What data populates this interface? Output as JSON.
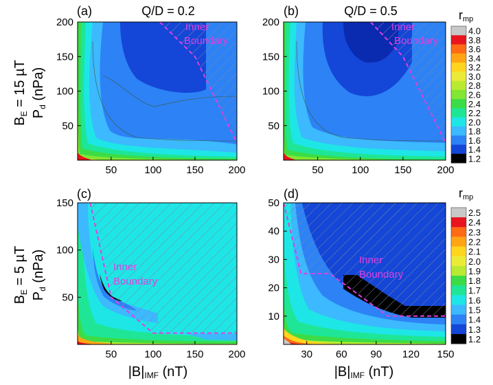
{
  "figure": {
    "row_labels": [
      {
        "field": "B",
        "sub": "E",
        "rest": " = 15 µT"
      },
      {
        "field": "B",
        "sub": "E",
        "rest": " = 5 µT"
      }
    ],
    "ylabel": {
      "main": "P",
      "sub": "d",
      "unit": " (nPa)"
    },
    "xlabel": {
      "main": "|B|",
      "sub": "IMF",
      "unit": " (nT)"
    },
    "inner_boundary_text": [
      "Inner",
      "Boundary"
    ]
  },
  "colors": {
    "boundary": "#e040e0",
    "hatch": "#7a8aa0",
    "contour": "#3a5a3a"
  },
  "chart_data": [
    {
      "type": "contour",
      "panel": "(a)",
      "title": "Q/D = 0.2",
      "xlim": [
        10,
        200
      ],
      "ylim": [
        0,
        200
      ],
      "xticks": [
        50,
        100,
        150,
        200
      ],
      "yticks": [
        50,
        100,
        150,
        200
      ],
      "boundary": [
        [
          108,
          200
        ],
        [
          150,
          150
        ],
        [
          200,
          25
        ]
      ],
      "colorbar": "cb1"
    },
    {
      "type": "contour",
      "panel": "(b)",
      "title": "Q/D = 0.5",
      "xlim": [
        10,
        200
      ],
      "ylim": [
        0,
        200
      ],
      "xticks": [
        50,
        100,
        150,
        200
      ],
      "yticks": [
        50,
        100,
        150,
        200
      ],
      "boundary": [
        [
          112,
          200
        ],
        [
          150,
          150
        ],
        [
          200,
          25
        ]
      ],
      "colorbar": "cb1"
    },
    {
      "type": "contour",
      "panel": "(c)",
      "title": "",
      "xlim": [
        10,
        200
      ],
      "ylim": [
        0,
        150
      ],
      "xticks": [
        50,
        100,
        150,
        200
      ],
      "yticks": [
        50,
        100,
        150
      ],
      "boundary": [
        [
          25,
          150
        ],
        [
          50,
          50
        ],
        [
          100,
          12
        ],
        [
          200,
          12
        ]
      ],
      "colorbar": "cb2"
    },
    {
      "type": "contour",
      "panel": "(d)",
      "title": "",
      "xlim": [
        10,
        150
      ],
      "ylim": [
        0,
        50
      ],
      "xticks": [
        30,
        60,
        90,
        120,
        150
      ],
      "yticks": [
        10,
        20,
        30,
        40,
        50
      ],
      "boundary": [
        [
          10,
          50
        ],
        [
          25,
          25
        ],
        [
          50,
          25
        ],
        [
          100,
          10
        ],
        [
          150,
          10
        ]
      ],
      "colorbar": "cb2"
    }
  ],
  "colorbars": {
    "cb1": {
      "title_main": "r",
      "title_sub": "mp",
      "labels": [
        "4.0",
        "3.8",
        "3.6",
        "3.4",
        "3.2",
        "3.0",
        "2.8",
        "2.6",
        "2.4",
        "2.2",
        "2.0",
        "1.8",
        "1.6",
        "1.4",
        "1.2"
      ],
      "colors": [
        "#c8c8c8",
        "#e8141e",
        "#ff6a14",
        "#ffa514",
        "#ffd51e",
        "#ebeb37",
        "#b9ea32",
        "#82e632",
        "#3cdc46",
        "#1ee696",
        "#1ee6e6",
        "#3cb9ff",
        "#2d82f5",
        "#1446d7",
        "#000000"
      ]
    },
    "cb2": {
      "title_main": "r",
      "title_sub": "mp",
      "labels": [
        "2.5",
        "2.4",
        "2.3",
        "2.2",
        "2.1",
        "2.0",
        "1.9",
        "1.8",
        "1.7",
        "1.6",
        "1.5",
        "1.4",
        "1.3",
        "1.2"
      ],
      "colors": [
        "#c8c8c8",
        "#e8141e",
        "#ff6a14",
        "#ffa514",
        "#ffd51e",
        "#ebeb37",
        "#b9ea32",
        "#3cdc46",
        "#1ee696",
        "#1ee6e6",
        "#3cb9ff",
        "#2d82f5",
        "#1446d7",
        "#000000"
      ]
    }
  }
}
